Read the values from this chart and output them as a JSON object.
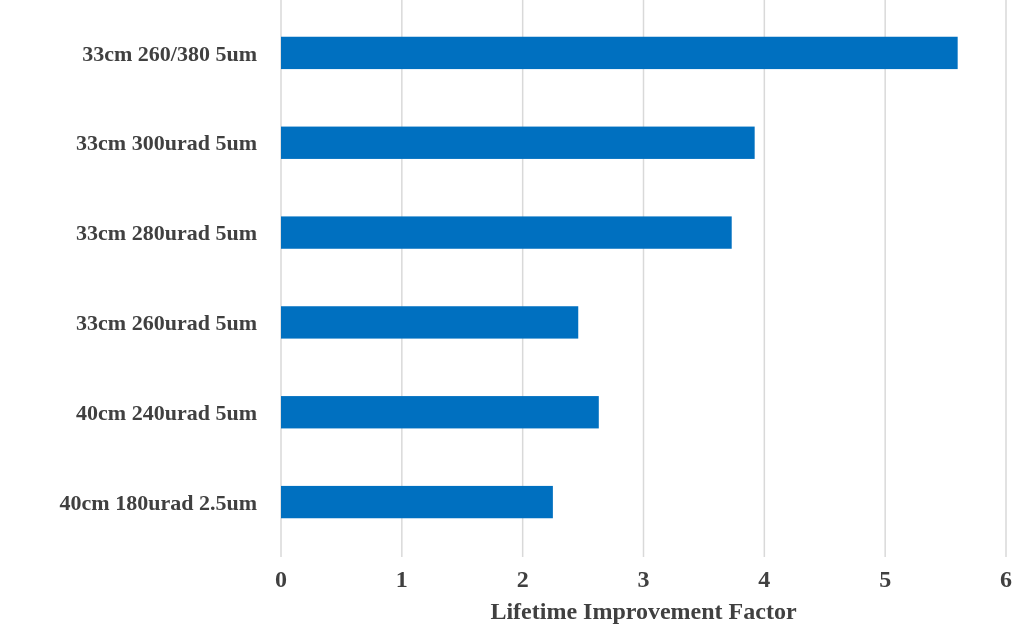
{
  "chart_data": {
    "type": "bar",
    "orientation": "horizontal",
    "xlabel": "Lifetime Improvement Factor",
    "categories": [
      "33cm 260/380 5um",
      "33cm 300urad 5um",
      "33cm 280urad 5um",
      "33cm 260urad 5um",
      "40cm 240urad 5um",
      "40cm 180urad 2.5um"
    ],
    "values": [
      5.6,
      3.92,
      3.73,
      2.46,
      2.63,
      2.25
    ],
    "color": "#0070c0",
    "xlim": [
      0,
      6
    ],
    "xticks": [
      0,
      1,
      2,
      3,
      4,
      5,
      6
    ],
    "grid": "x"
  }
}
